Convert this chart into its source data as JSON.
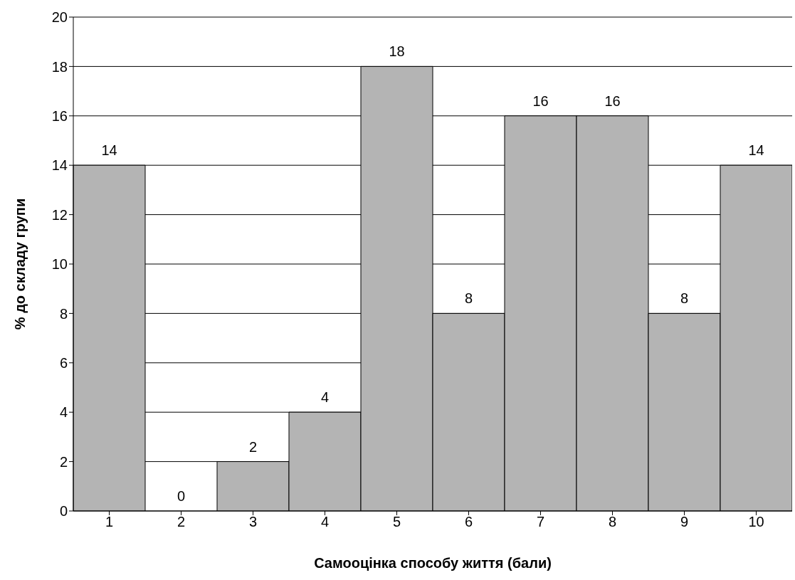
{
  "chart_data": {
    "type": "bar",
    "xlabel": "Самооцінка способу життя (бали)",
    "ylabel": "% до складу групи",
    "categories": [
      "1",
      "2",
      "3",
      "4",
      "5",
      "6",
      "7",
      "8",
      "9",
      "10"
    ],
    "values": [
      14,
      0,
      2,
      4,
      18,
      8,
      16,
      16,
      8,
      14
    ],
    "color": "#b4b4b4",
    "ylim": [
      0,
      20
    ],
    "yticks": [
      0,
      2,
      4,
      6,
      8,
      10,
      12,
      14,
      16,
      18,
      20
    ],
    "grid": "y",
    "data_labels": true
  }
}
